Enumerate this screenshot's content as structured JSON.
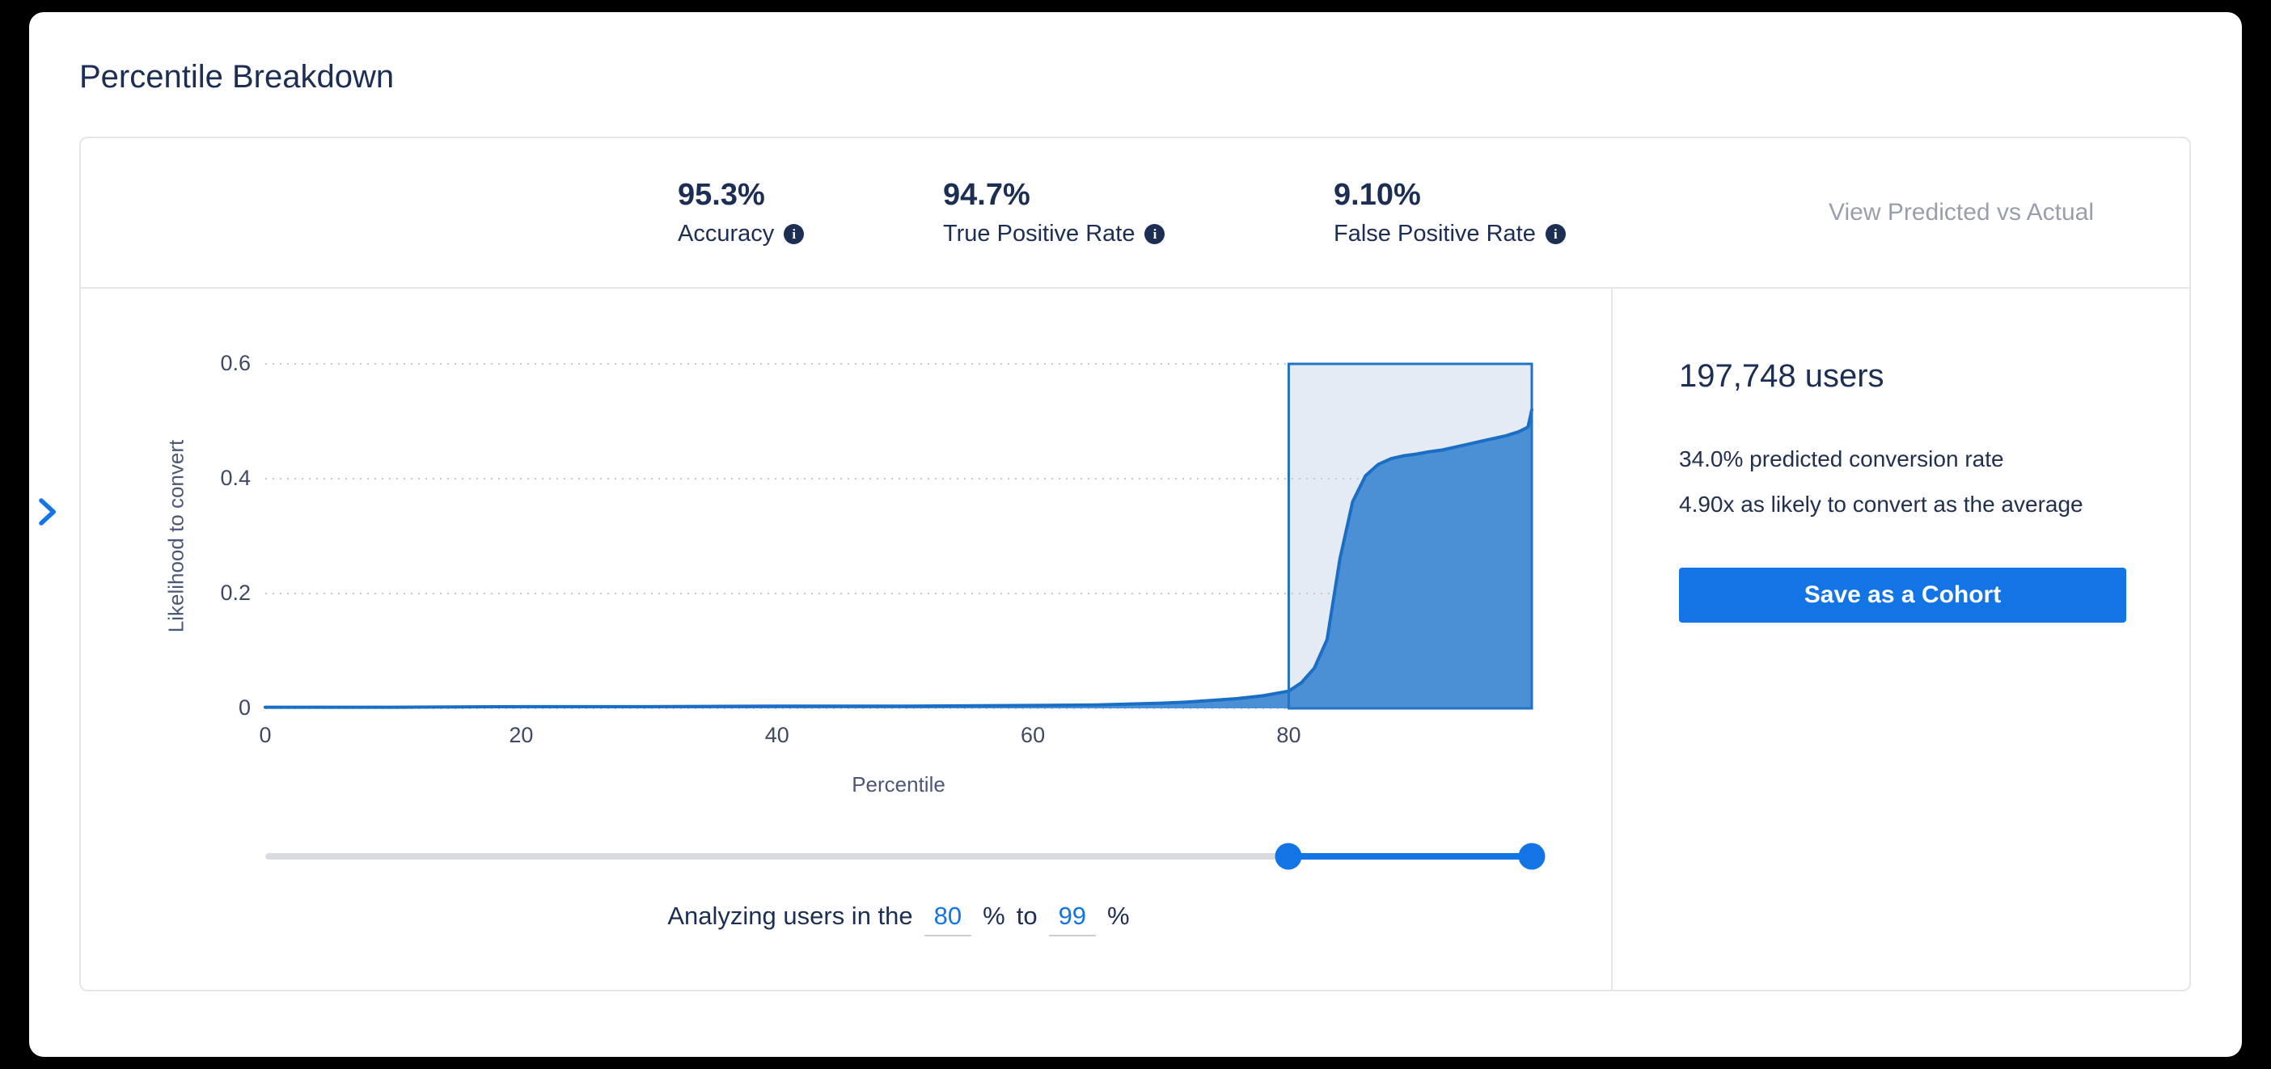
{
  "page": {
    "title": "Percentile Breakdown"
  },
  "header": {
    "metrics": [
      {
        "value": "95.3%",
        "label": "Accuracy"
      },
      {
        "value": "94.7%",
        "label": "True Positive Rate"
      },
      {
        "value": "9.10%",
        "label": "False Positive Rate"
      }
    ],
    "view_link": "View Predicted vs Actual"
  },
  "icons": {
    "info_glyph": "i"
  },
  "chart_data": {
    "type": "area",
    "title": "",
    "xlabel": "Percentile",
    "ylabel": "Likelihood to convert",
    "xlim": [
      0,
      99
    ],
    "ylim": [
      0,
      0.6
    ],
    "xticks": [
      0,
      20,
      40,
      60,
      80
    ],
    "yticks": [
      0,
      0.2,
      0.4,
      0.6
    ],
    "grid": "dotted-horizontal",
    "selection": {
      "from": 80,
      "to": 99
    },
    "x": [
      0,
      10,
      20,
      30,
      40,
      50,
      60,
      65,
      70,
      72,
      74,
      76,
      78,
      80,
      81,
      82,
      83,
      84,
      85,
      86,
      87,
      88,
      89,
      90,
      91,
      92,
      93,
      94,
      95,
      96,
      97,
      98,
      98.7,
      99
    ],
    "y": [
      0.002,
      0.002,
      0.003,
      0.003,
      0.004,
      0.004,
      0.005,
      0.006,
      0.009,
      0.011,
      0.014,
      0.017,
      0.022,
      0.03,
      0.045,
      0.07,
      0.12,
      0.26,
      0.36,
      0.405,
      0.425,
      0.435,
      0.44,
      0.443,
      0.447,
      0.45,
      0.455,
      0.46,
      0.465,
      0.47,
      0.475,
      0.482,
      0.49,
      0.52
    ]
  },
  "slider": {
    "min": 0,
    "max": 99,
    "from": 80,
    "to": 99
  },
  "range": {
    "prefix": "Analyzing users in the",
    "from": "80",
    "unit": "%",
    "to_word": "to",
    "to": "99"
  },
  "summary": {
    "users": "197,748 users",
    "line1": "34.0% predicted conversion rate",
    "line2": "4.90x as likely to convert as the average",
    "button": "Save as a Cohort"
  },
  "colors": {
    "accent": "#1374e6",
    "navy": "#1c2e54",
    "muted": "#989fab",
    "axis_text": "#4b5774",
    "grid": "#c3c6cc",
    "line": "#1a6ec5",
    "area": "#4b90d5",
    "selection_fill": "#e5ebf5",
    "selection_stroke": "#2273c4",
    "track": "#d8dbe0",
    "border": "#e4e6ea"
  }
}
